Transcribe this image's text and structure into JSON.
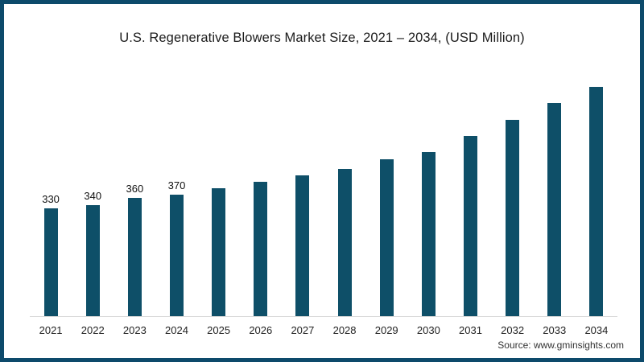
{
  "title": "U.S. Regenerative Blowers Market Size, 2021 – 2034, (USD Million)",
  "source": "Source: www.gminsights.com",
  "colors": {
    "bar": "#0e4f68",
    "frame_border": "#0d4a6b",
    "axis_line": "#d9d9d9",
    "title_text": "#1b1b1b"
  },
  "chart_data": {
    "type": "bar",
    "title": "U.S. Regenerative Blowers Market Size, 2021 – 2034, (USD Million)",
    "categories": [
      "2021",
      "2022",
      "2023",
      "2024",
      "2025",
      "2026",
      "2027",
      "2028",
      "2029",
      "2030",
      "2031",
      "2032",
      "2033",
      "2034"
    ],
    "values": [
      330,
      340,
      360,
      370,
      390,
      410,
      430,
      450,
      480,
      500,
      550,
      600,
      650,
      700
    ],
    "point_labels": [
      "330",
      "340",
      "360",
      "370",
      "",
      "",
      "",
      "",
      "",
      "",
      "",
      "",
      "",
      ""
    ],
    "xlabel": "",
    "ylabel": "",
    "ylim": [
      0,
      700
    ],
    "grid": false,
    "legend": false,
    "y_axis_shown": false
  }
}
